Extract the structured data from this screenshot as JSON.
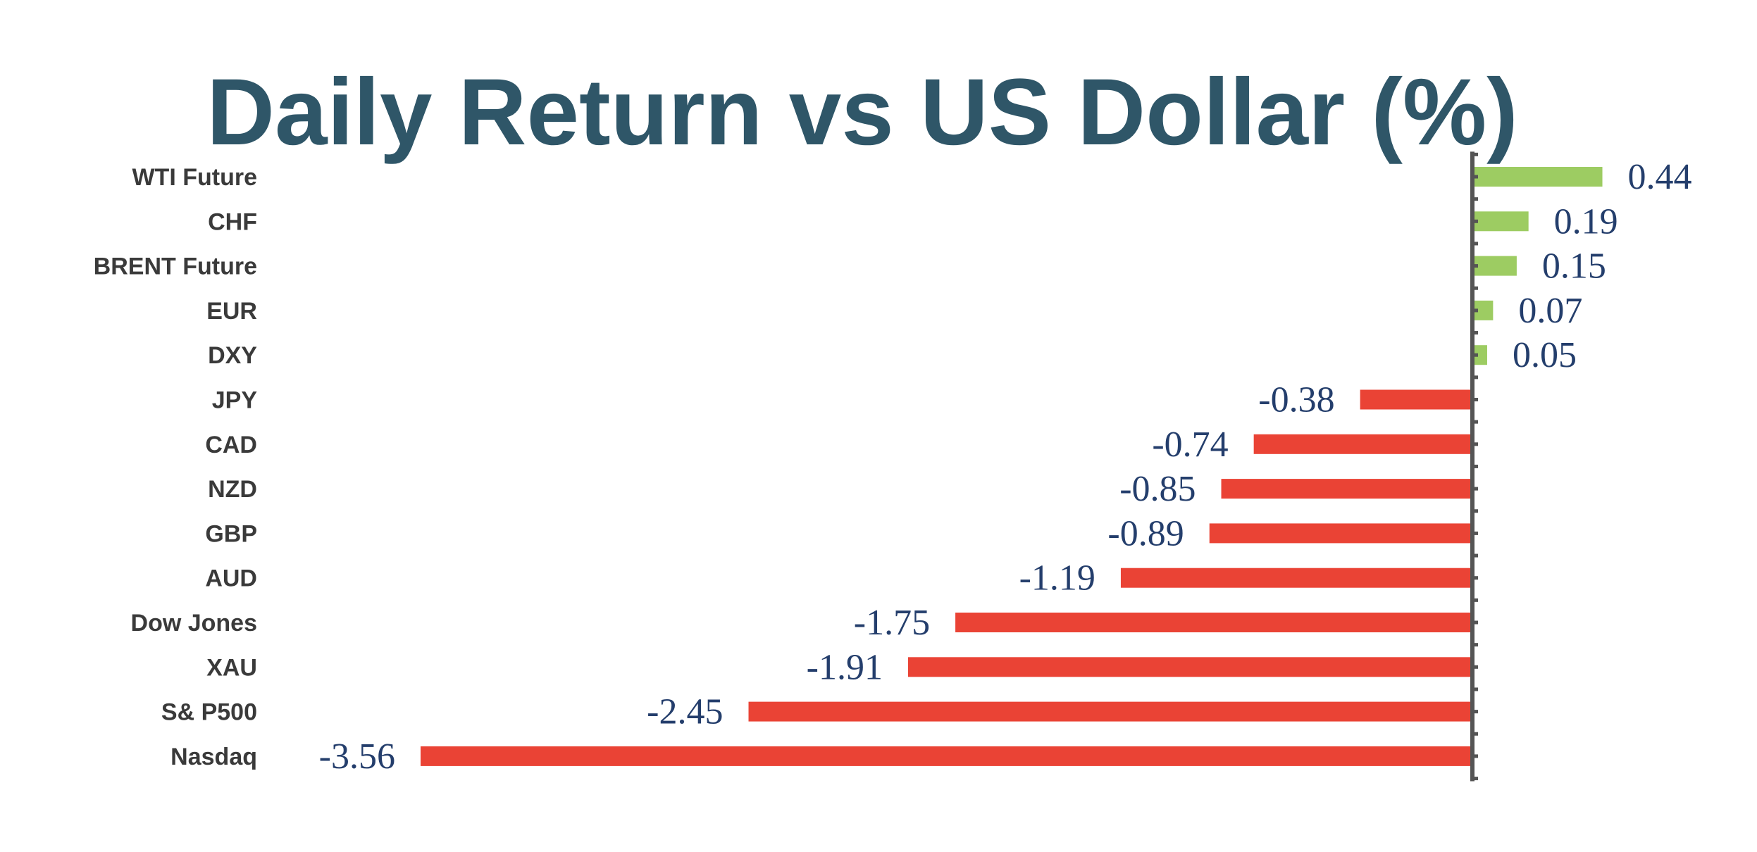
{
  "chart_data": {
    "type": "bar",
    "orientation": "horizontal",
    "title": "Daily Return vs US Dollar (%)",
    "categories": [
      "WTI Future",
      "CHF",
      "BRENT Future",
      "EUR",
      "DXY",
      "JPY",
      "CAD",
      "NZD",
      "GBP",
      "AUD",
      "Dow Jones",
      "XAU",
      "S& P500",
      "Nasdaq"
    ],
    "values": [
      0.44,
      0.19,
      0.15,
      0.07,
      0.05,
      -0.38,
      -0.74,
      -0.85,
      -0.89,
      -1.19,
      -1.75,
      -1.91,
      -2.45,
      -3.56
    ],
    "data_labels": [
      "0.44",
      "0.19",
      "0.15",
      "0.07",
      "0.05",
      "-0.38",
      "-0.74",
      "-0.85",
      "-0.89",
      "-1.19",
      "-1.75",
      "-1.91",
      "-2.45",
      "-3.56"
    ],
    "xlim": [
      -3.8,
      0.8
    ],
    "grid": false,
    "legend": "none",
    "colors": {
      "positive": "#9dcc62",
      "negative": "#ea4335",
      "title": "#2f5668",
      "category_text": "#3a3a3a",
      "value_text": "#243e6c",
      "axis": "#555555"
    }
  }
}
